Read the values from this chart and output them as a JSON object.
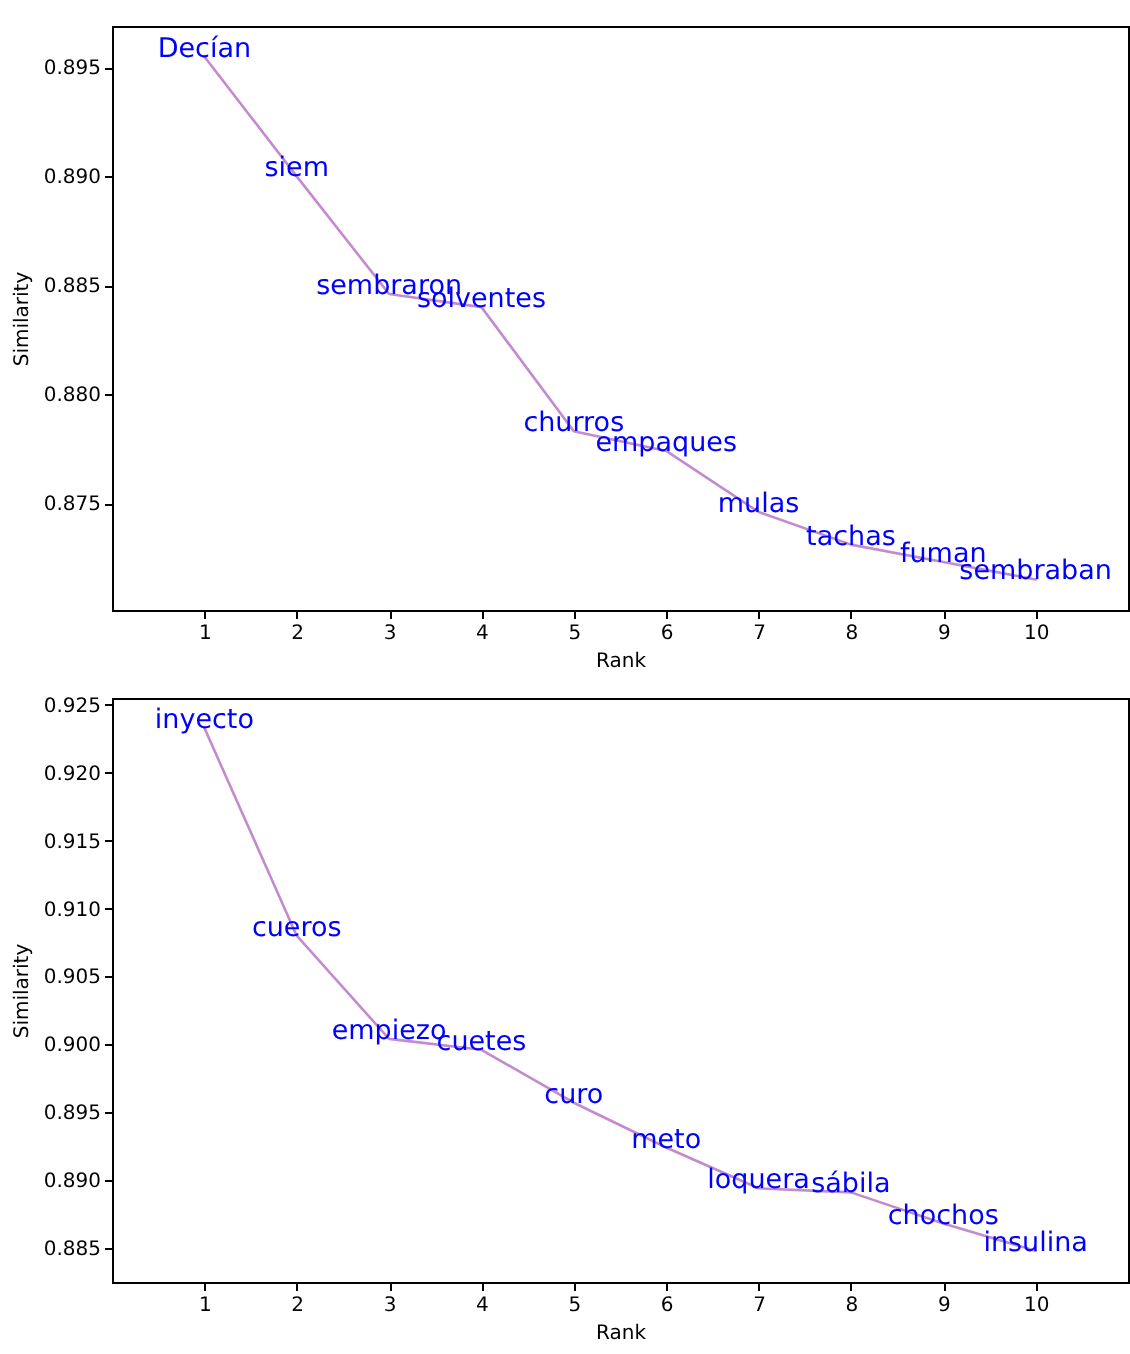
{
  "chart_data": [
    {
      "type": "line",
      "xlabel": "Rank",
      "ylabel": "Similarity",
      "x": [
        1,
        2,
        3,
        4,
        5,
        6,
        7,
        8,
        9,
        10
      ],
      "xlim": [
        0,
        11
      ],
      "xticks": [
        1,
        2,
        3,
        4,
        5,
        6,
        7,
        8,
        9,
        10
      ],
      "ylim": [
        0.8701,
        0.8969
      ],
      "yticks": [
        0.875,
        {
          "value": 0.88,
          "label": "0.880"
        },
        0.885,
        {
          "value": 0.89,
          "label": "0.890"
        },
        0.895
      ],
      "series": [
        {
          "color": "#c38bce",
          "values": [
            0.8955,
            0.89,
            0.8846,
            0.884,
            0.8783,
            0.8774,
            0.8746,
            0.8731,
            0.8723,
            0.8715
          ]
        }
      ],
      "annotations": [
        {
          "text": "Decían",
          "x": 1,
          "y": 0.8955
        },
        {
          "text": "siem",
          "x": 2,
          "y": 0.89
        },
        {
          "text": "sembraron",
          "x": 3,
          "y": 0.8846
        },
        {
          "text": "solventes",
          "x": 4,
          "y": 0.884
        },
        {
          "text": "churros",
          "x": 5,
          "y": 0.8783
        },
        {
          "text": "empaques",
          "x": 6,
          "y": 0.8774
        },
        {
          "text": "mulas",
          "x": 7,
          "y": 0.8746
        },
        {
          "text": "tachas",
          "x": 8,
          "y": 0.8731
        },
        {
          "text": "fuman",
          "x": 9,
          "y": 0.8723
        },
        {
          "text": "sembraban",
          "x": 10,
          "y": 0.8715
        }
      ]
    },
    {
      "type": "line",
      "xlabel": "Rank",
      "ylabel": "Similarity",
      "x": [
        1,
        2,
        3,
        4,
        5,
        6,
        7,
        8,
        9,
        10
      ],
      "xlim": [
        0,
        11
      ],
      "xticks": [
        1,
        2,
        3,
        4,
        5,
        6,
        7,
        8,
        9,
        10
      ],
      "ylim": [
        0.8825,
        0.9255
      ],
      "yticks": [
        0.885,
        {
          "value": 0.89,
          "label": "0.890"
        },
        0.895,
        {
          "value": 0.9,
          "label": "0.900"
        },
        0.905,
        {
          "value": 0.91,
          "label": "0.910"
        },
        0.915,
        {
          "value": 0.92,
          "label": "0.920"
        },
        0.925
      ],
      "series": [
        {
          "color": "#c38bce",
          "values": [
            0.9233,
            0.908,
            0.9004,
            0.8996,
            0.8957,
            0.8924,
            0.8894,
            0.8891,
            0.8868,
            0.8848
          ]
        }
      ],
      "annotations": [
        {
          "text": "inyecto",
          "x": 1,
          "y": 0.9233
        },
        {
          "text": "cueros",
          "x": 2,
          "y": 0.908
        },
        {
          "text": "empiezo",
          "x": 3,
          "y": 0.9004
        },
        {
          "text": "cuetes",
          "x": 4,
          "y": 0.8996
        },
        {
          "text": "curo",
          "x": 5,
          "y": 0.8957
        },
        {
          "text": "meto",
          "x": 6,
          "y": 0.8924
        },
        {
          "text": "loquera",
          "x": 7,
          "y": 0.8894
        },
        {
          "text": "sábila",
          "x": 8,
          "y": 0.8891
        },
        {
          "text": "chochos",
          "x": 9,
          "y": 0.8868
        },
        {
          "text": "insulina",
          "x": 10,
          "y": 0.8848
        }
      ]
    }
  ]
}
